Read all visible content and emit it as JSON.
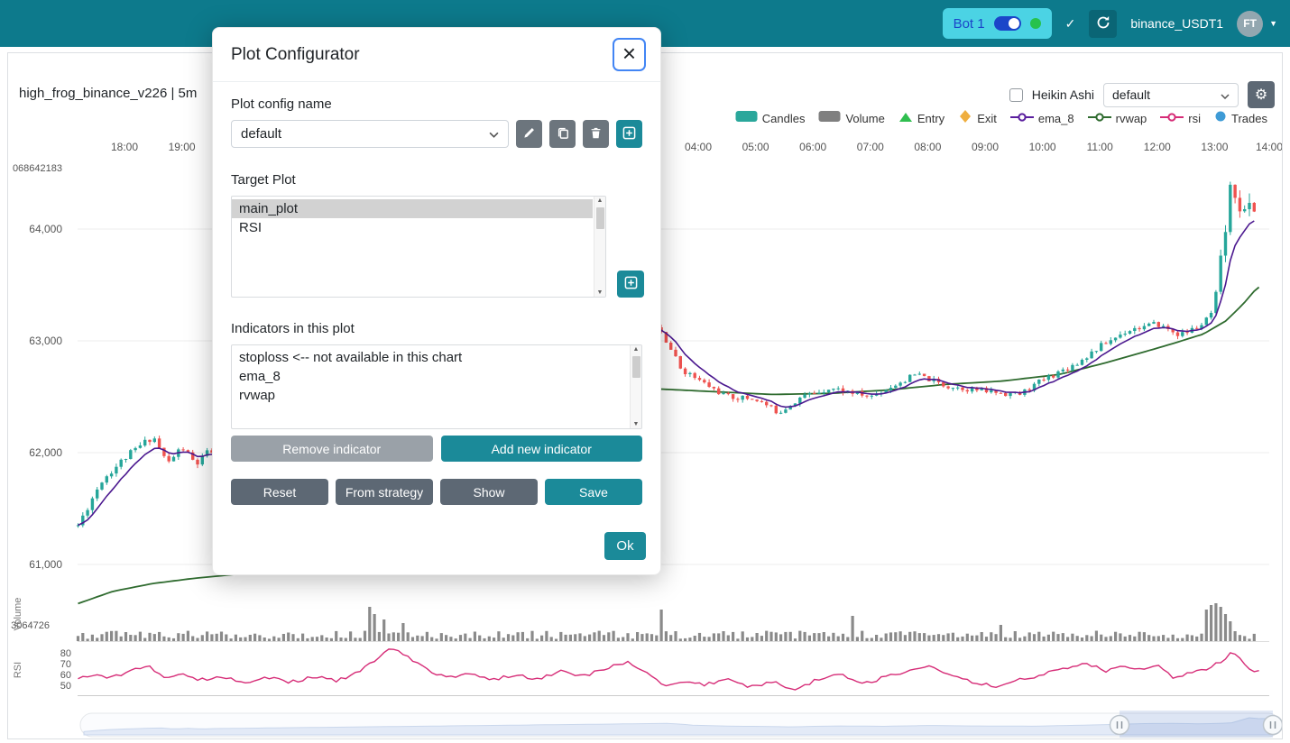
{
  "navbar": {
    "bot_label": "Bot 1",
    "check_icon": "✓",
    "pair_label": "binance_USDT1",
    "avatar_label": "FT",
    "caret_icon": "▼"
  },
  "chart_header": {
    "title": "high_frog_binance_v226 | 5m",
    "heikin_ashi_label": "Heikin Ashi",
    "plot_select_value": "default",
    "gear_icon": "⚙"
  },
  "modal": {
    "title": "Plot Configurator",
    "close_icon": "×",
    "config_name_label": "Plot config name",
    "config_select_value": "default",
    "target_plot_label": "Target Plot",
    "target_plots": [
      "main_plot",
      "RSI"
    ],
    "target_plot_selected": "main_plot",
    "indicators_label": "Indicators in this plot",
    "indicators": [
      "stoploss <-- not available in this chart",
      "ema_8",
      "rvwap"
    ],
    "buttons": {
      "remove_indicator": "Remove indicator",
      "add_new_indicator": "Add new indicator",
      "reset": "Reset",
      "from_strategy": "From strategy",
      "show": "Show",
      "save": "Save",
      "ok": "Ok"
    }
  },
  "chart_data": {
    "type": "candlestick",
    "title": "high_frog_binance_v226 | 5m",
    "timeframe": "5m",
    "render_seed": 11,
    "legend": [
      {
        "label": "Candles",
        "icon": "rect",
        "color": "#2aa79b"
      },
      {
        "label": "Volume",
        "icon": "rect",
        "color": "#7f7f7f"
      },
      {
        "label": "Entry",
        "icon": "triangle",
        "color": "#2fbe4f"
      },
      {
        "label": "Exit",
        "icon": "diamond",
        "color": "#efae3f"
      },
      {
        "label": "ema_8",
        "icon": "line",
        "color": "#5a1e9e"
      },
      {
        "label": "rvwap",
        "icon": "line",
        "color": "#2f6b2f"
      },
      {
        "label": "rsi",
        "icon": "line",
        "color": "#d62c77"
      },
      {
        "label": "Trades",
        "icon": "circle",
        "color": "#3e9bd6"
      }
    ],
    "x_ticks": [
      {
        "label": "18:00",
        "t": 18
      },
      {
        "label": "19:00",
        "t": 19
      },
      {
        "label": "04:00",
        "t": 28
      },
      {
        "label": "05:00",
        "t": 29
      },
      {
        "label": "06:00",
        "t": 30
      },
      {
        "label": "07:00",
        "t": 31
      },
      {
        "label": "08:00",
        "t": 32
      },
      {
        "label": "09:00",
        "t": 33
      },
      {
        "label": "10:00",
        "t": 34
      },
      {
        "label": "11:00",
        "t": 35
      },
      {
        "label": "12:00",
        "t": 36
      },
      {
        "label": "13:00",
        "t": 37
      },
      {
        "label": "14:00",
        "t": 38
      }
    ],
    "price_ticks": [
      {
        "label": "64,000",
        "value": 64000
      },
      {
        "label": "63,000",
        "value": 63000
      },
      {
        "label": "62,000",
        "value": 62000
      },
      {
        "label": "61,000",
        "value": 61000
      }
    ],
    "rsi_ticks": [
      {
        "label": "80",
        "value": 80
      },
      {
        "label": "70",
        "value": 70
      },
      {
        "label": "60",
        "value": 60
      },
      {
        "label": "50",
        "value": 50
      }
    ],
    "misc_labels": {
      "price_axis_top": "068642183",
      "volume_axis": "3064726",
      "volume_pane": "Volume",
      "rsi_pane": "RSI"
    },
    "colors": {
      "up": "#26a69a",
      "down": "#ef5350",
      "volume": "#8a8a8a",
      "ema_8": "#4b188f",
      "rvwap": "#2f6b2f",
      "rsi": "#d62c77"
    },
    "price_keyframes": [
      [
        17.19,
        61350
      ],
      [
        17.6,
        61750
      ],
      [
        18.0,
        61950
      ],
      [
        18.5,
        62150
      ],
      [
        18.75,
        61900
      ],
      [
        19.0,
        62050
      ],
      [
        19.25,
        61890
      ],
      [
        19.45,
        62000
      ],
      [
        27.3,
        63150
      ],
      [
        27.7,
        62750
      ],
      [
        28.0,
        62650
      ],
      [
        28.5,
        62500
      ],
      [
        29.0,
        62480
      ],
      [
        29.4,
        62360
      ],
      [
        29.8,
        62500
      ],
      [
        30.3,
        62580
      ],
      [
        31.0,
        62500
      ],
      [
        31.8,
        62700
      ],
      [
        32.3,
        62600
      ],
      [
        33.0,
        62550
      ],
      [
        33.6,
        62520
      ],
      [
        34.0,
        62650
      ],
      [
        34.6,
        62800
      ],
      [
        35.0,
        62950
      ],
      [
        35.5,
        63100
      ],
      [
        36.0,
        63150
      ],
      [
        36.4,
        63050
      ],
      [
        36.8,
        63150
      ],
      [
        37.0,
        63280
      ],
      [
        37.15,
        63850
      ],
      [
        37.3,
        64430
      ],
      [
        37.5,
        64120
      ],
      [
        37.65,
        64240
      ],
      [
        37.7,
        64150
      ]
    ],
    "rvwap_keyframes": [
      [
        17.19,
        60650
      ],
      [
        17.8,
        60760
      ],
      [
        18.5,
        60830
      ],
      [
        19.2,
        60875
      ],
      [
        20.0,
        60915
      ],
      [
        20.9,
        60950
      ],
      [
        27.3,
        62570
      ],
      [
        28.3,
        62545
      ],
      [
        29.3,
        62520
      ],
      [
        30.3,
        62530
      ],
      [
        31.3,
        62560
      ],
      [
        32.3,
        62610
      ],
      [
        33.3,
        62640
      ],
      [
        34.3,
        62700
      ],
      [
        35.0,
        62790
      ],
      [
        35.7,
        62890
      ],
      [
        36.3,
        62980
      ],
      [
        36.8,
        63060
      ],
      [
        37.2,
        63180
      ],
      [
        37.5,
        63330
      ],
      [
        37.75,
        63480
      ]
    ],
    "rsi_keyframes": [
      [
        17.19,
        56
      ],
      [
        17.5,
        60
      ],
      [
        17.8,
        57
      ],
      [
        18.1,
        64
      ],
      [
        18.45,
        67
      ],
      [
        18.7,
        57
      ],
      [
        19.0,
        62
      ],
      [
        19.3,
        55
      ],
      [
        19.7,
        58
      ],
      [
        20.1,
        52
      ],
      [
        20.5,
        57
      ],
      [
        20.9,
        53
      ],
      [
        21.3,
        58
      ],
      [
        21.7,
        54
      ],
      [
        22.0,
        60
      ],
      [
        22.3,
        70
      ],
      [
        22.66,
        85
      ],
      [
        23.0,
        74
      ],
      [
        23.36,
        61
      ],
      [
        23.7,
        57
      ],
      [
        24.0,
        62
      ],
      [
        24.4,
        55
      ],
      [
        24.8,
        60
      ],
      [
        25.2,
        56
      ],
      [
        25.6,
        63
      ],
      [
        26.0,
        58
      ],
      [
        26.4,
        66
      ],
      [
        26.8,
        71
      ],
      [
        27.1,
        62
      ],
      [
        27.4,
        50
      ],
      [
        27.8,
        54
      ],
      [
        28.1,
        50
      ],
      [
        28.5,
        56
      ],
      [
        28.9,
        48
      ],
      [
        29.3,
        53
      ],
      [
        29.7,
        46
      ],
      [
        30.1,
        56
      ],
      [
        30.5,
        60
      ],
      [
        30.9,
        52
      ],
      [
        31.3,
        58
      ],
      [
        31.7,
        63
      ],
      [
        32.0,
        68
      ],
      [
        32.4,
        58
      ],
      [
        32.8,
        53
      ],
      [
        33.2,
        49
      ],
      [
        33.6,
        55
      ],
      [
        34.0,
        60
      ],
      [
        34.4,
        66
      ],
      [
        34.8,
        70
      ],
      [
        35.1,
        63
      ],
      [
        35.4,
        69
      ],
      [
        35.7,
        64
      ],
      [
        36.0,
        68
      ],
      [
        36.3,
        56
      ],
      [
        36.6,
        62
      ],
      [
        36.9,
        66
      ],
      [
        37.1,
        72
      ],
      [
        37.3,
        80
      ],
      [
        37.5,
        71
      ],
      [
        37.65,
        64
      ],
      [
        37.8,
        62
      ]
    ],
    "volume_spikes": [
      [
        22.27,
        38
      ],
      [
        22.39,
        30
      ],
      [
        22.5,
        24
      ],
      [
        22.86,
        20
      ],
      [
        27.37,
        35
      ],
      [
        30.66,
        28
      ],
      [
        33.28,
        18
      ],
      [
        36.85,
        35
      ],
      [
        36.93,
        40
      ],
      [
        37.0,
        42
      ],
      [
        37.08,
        38
      ],
      [
        37.16,
        30
      ],
      [
        37.3,
        22
      ]
    ]
  }
}
